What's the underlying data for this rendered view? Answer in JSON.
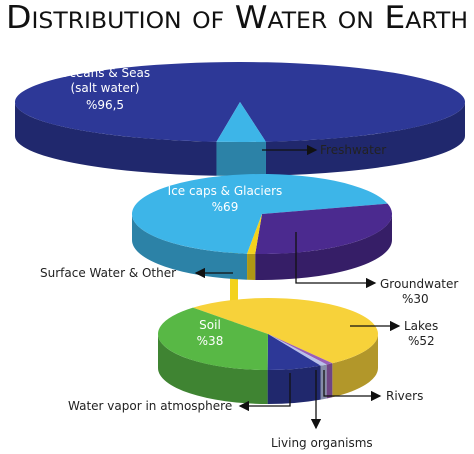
{
  "title": "Distribution of Water on Earth",
  "chart_data": [
    {
      "type": "pie",
      "categories": [
        "Oceans & Seas (salt water)",
        "Freshwater"
      ],
      "values": [
        96.5,
        3.5
      ],
      "value_labels": [
        "%96,5",
        null
      ],
      "colors": [
        "#2d3897",
        "#3db5e8"
      ]
    },
    {
      "type": "pie",
      "categories": [
        "Ice caps & Glaciers",
        "Groundwater",
        "Surface Water & Other"
      ],
      "values": [
        69,
        30,
        1
      ],
      "value_labels": [
        "%69",
        "%30",
        null
      ],
      "colors": [
        "#3db5e8",
        "#4b2a8f",
        "#f3d21c"
      ]
    },
    {
      "type": "pie",
      "categories": [
        "Lakes",
        "Rivers",
        "Living organisms",
        "Water vapor in atmosphere",
        "Soil"
      ],
      "values": [
        52,
        1,
        1,
        8,
        38
      ],
      "value_labels": [
        "%52",
        null,
        null,
        null,
        "%38"
      ],
      "colors": [
        "#f7d23a",
        "#9a5fb8",
        "#b9c1ea",
        "#2d3897",
        "#58b845"
      ]
    }
  ]
}
